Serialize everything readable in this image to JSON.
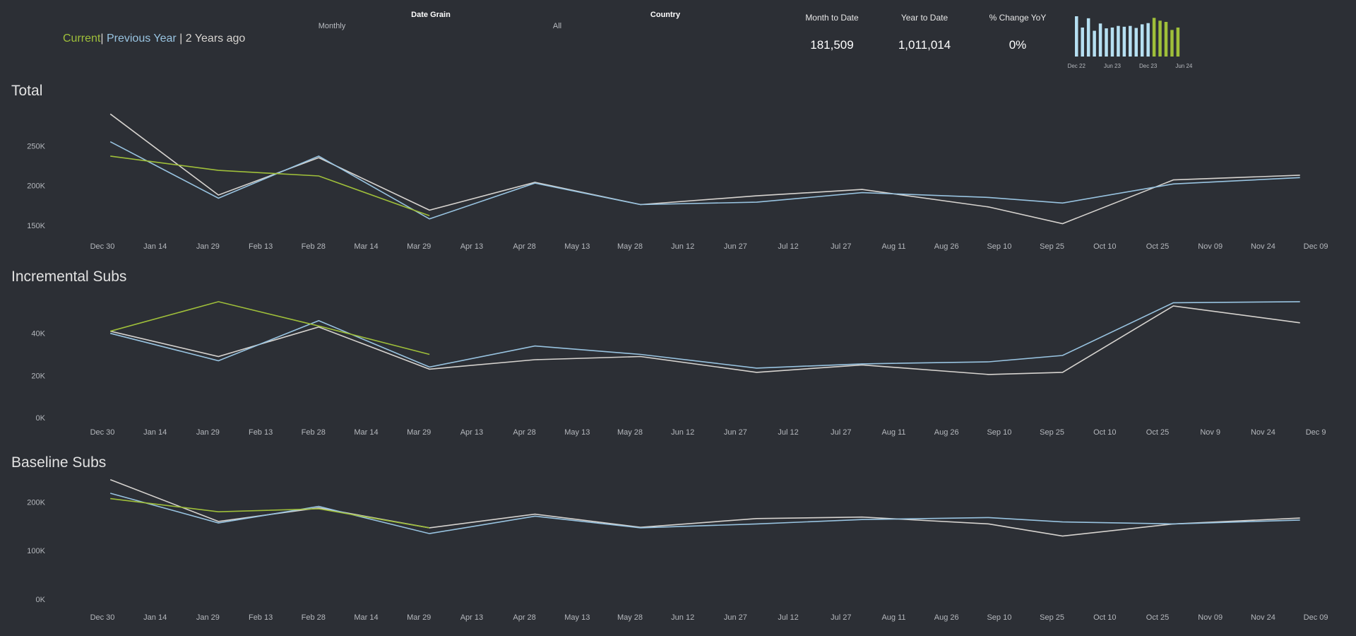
{
  "legend": {
    "current": "Current",
    "sep1": "|",
    "previous": "Previous Year",
    "sep2": "|",
    "two_years": "2 Years ago"
  },
  "filters": {
    "date_grain": {
      "label": "Date Grain",
      "value": "Monthly"
    },
    "country": {
      "label": "Country",
      "value": "All"
    }
  },
  "kpis": [
    {
      "label": "Month to Date",
      "value": "181,509"
    },
    {
      "label": "Year to Date",
      "value": "1,011,014"
    },
    {
      "label": "% Change YoY",
      "value": "0%"
    }
  ],
  "colors": {
    "background": "#2c2f35",
    "current": "#9fbf3a",
    "previous_year": "#98c3e0",
    "two_years_ago": "#d6d3cf",
    "spark_previous": "#b6e0f2"
  },
  "chart_data": [
    {
      "type": "bar",
      "name": "sparkline",
      "categories": [
        "Dec 22",
        "Jan 23",
        "Feb 23",
        "Mar 23",
        "Apr 23",
        "May 23",
        "Jun 23",
        "Jul 23",
        "Aug 23",
        "Sep 23",
        "Oct 23",
        "Nov 23",
        "Dec 23",
        "Jan 24",
        "Feb 24",
        "Mar 24",
        "Apr 24",
        "May 24",
        "Jun 24"
      ],
      "values": [
        100,
        72,
        95,
        64,
        82,
        70,
        72,
        76,
        74,
        76,
        71,
        80,
        83,
        96,
        89,
        86,
        66,
        72,
        0
      ],
      "highlight_from_index": 13,
      "tick_labels": [
        "Dec 22",
        "Jun 23",
        "Dec 23",
        "Jun 24"
      ],
      "tick_positions": [
        0,
        6,
        12,
        18
      ]
    },
    {
      "type": "line",
      "title": "Total",
      "x_labels": [
        "Dec 30",
        "Jan 14",
        "Jan 29",
        "Feb 13",
        "Feb 28",
        "Mar 14",
        "Mar 29",
        "Apr 13",
        "Apr 28",
        "May 13",
        "May 28",
        "Jun 12",
        "Jun 27",
        "Jul 12",
        "Jul 27",
        "Aug 11",
        "Aug 26",
        "Sep 10",
        "Sep 25",
        "Oct 10",
        "Oct 25",
        "Nov 09",
        "Nov 24",
        "Dec 09"
      ],
      "y_ticks": [
        {
          "label": "250K",
          "value": 250000
        },
        {
          "label": "200K",
          "value": 200000
        },
        {
          "label": "150K",
          "value": 150000
        }
      ],
      "ylim": [
        140000,
        300000
      ],
      "series": [
        {
          "name": "2 Years ago",
          "color": "#d6d3cf",
          "points": [
            [
              0.15,
              290000
            ],
            [
              2.2,
              188000
            ],
            [
              4.1,
              235000
            ],
            [
              6.2,
              169000
            ],
            [
              8.2,
              204000
            ],
            [
              10.2,
              176000
            ],
            [
              12.4,
              187000
            ],
            [
              14.4,
              195000
            ],
            [
              16.8,
              173000
            ],
            [
              18.2,
              152000
            ],
            [
              20.3,
              207000
            ],
            [
              22.7,
              213000
            ]
          ]
        },
        {
          "name": "Previous Year",
          "color": "#98c3e0",
          "points": [
            [
              0.15,
              255000
            ],
            [
              2.2,
              184000
            ],
            [
              4.1,
              237000
            ],
            [
              6.2,
              158000
            ],
            [
              8.2,
              203000
            ],
            [
              10.2,
              176000
            ],
            [
              12.4,
              179000
            ],
            [
              14.4,
              191000
            ],
            [
              16.8,
              185000
            ],
            [
              18.2,
              178000
            ],
            [
              20.3,
              202000
            ],
            [
              22.7,
              210000
            ]
          ]
        },
        {
          "name": "Current",
          "color": "#9fbf3a",
          "points": [
            [
              0.15,
              237000
            ],
            [
              2.2,
              219000
            ],
            [
              4.1,
              212000
            ],
            [
              6.2,
              162000
            ]
          ]
        }
      ]
    },
    {
      "type": "line",
      "title": "Incremental Subs",
      "x_labels": [
        "Dec 30",
        "Jan 14",
        "Jan 29",
        "Feb 13",
        "Feb 28",
        "Mar 14",
        "Mar 29",
        "Apr 13",
        "Apr 28",
        "May 13",
        "May 28",
        "Jun 12",
        "Jun 27",
        "Jul 12",
        "Jul 27",
        "Aug 11",
        "Aug 26",
        "Sep 10",
        "Sep 25",
        "Oct 10",
        "Oct 25",
        "Nov 9",
        "Nov 24",
        "Dec 9"
      ],
      "y_ticks": [
        {
          "label": "40K",
          "value": 40000
        },
        {
          "label": "20K",
          "value": 20000
        },
        {
          "label": "0K",
          "value": 0
        }
      ],
      "ylim": [
        0,
        58000
      ],
      "series": [
        {
          "name": "2 Years ago",
          "color": "#d6d3cf",
          "points": [
            [
              0.15,
              41000
            ],
            [
              2.2,
              29000
            ],
            [
              4.1,
              43000
            ],
            [
              6.2,
              23000
            ],
            [
              8.2,
              27500
            ],
            [
              10.2,
              29000
            ],
            [
              12.4,
              21500
            ],
            [
              14.4,
              25000
            ],
            [
              16.8,
              20500
            ],
            [
              18.2,
              21500
            ],
            [
              20.3,
              53000
            ],
            [
              22.7,
              45000
            ]
          ]
        },
        {
          "name": "Previous Year",
          "color": "#98c3e0",
          "points": [
            [
              0.15,
              40000
            ],
            [
              2.2,
              27000
            ],
            [
              4.1,
              46000
            ],
            [
              6.2,
              24000
            ],
            [
              8.2,
              34000
            ],
            [
              10.2,
              30000
            ],
            [
              12.4,
              23500
            ],
            [
              14.4,
              25500
            ],
            [
              16.8,
              26500
            ],
            [
              18.2,
              29500
            ],
            [
              20.3,
              54500
            ],
            [
              22.7,
              55000
            ]
          ]
        },
        {
          "name": "Current",
          "color": "#9fbf3a",
          "points": [
            [
              0.15,
              41000
            ],
            [
              2.2,
              55000
            ],
            [
              4.1,
              43500
            ],
            [
              6.2,
              30000
            ]
          ]
        }
      ]
    },
    {
      "type": "line",
      "title": "Baseline Subs",
      "x_labels": [
        "Dec 30",
        "Jan 14",
        "Jan 29",
        "Feb 13",
        "Feb 28",
        "Mar 14",
        "Mar 29",
        "Apr 13",
        "Apr 28",
        "May 13",
        "May 28",
        "Jun 12",
        "Jun 27",
        "Jul 12",
        "Jul 27",
        "Aug 11",
        "Aug 26",
        "Sep 10",
        "Sep 25",
        "Oct 10",
        "Oct 25",
        "Nov 09",
        "Nov 24",
        "Dec 09"
      ],
      "y_ticks": [
        {
          "label": "200K",
          "value": 200000
        },
        {
          "label": "100K",
          "value": 100000
        },
        {
          "label": "0K",
          "value": 0
        }
      ],
      "ylim": [
        0,
        250000
      ],
      "series": [
        {
          "name": "2 Years ago",
          "color": "#d6d3cf",
          "points": [
            [
              0.15,
              246000
            ],
            [
              2.2,
              160000
            ],
            [
              4.1,
              188000
            ],
            [
              6.2,
              147000
            ],
            [
              8.2,
              175000
            ],
            [
              10.2,
              148000
            ],
            [
              12.4,
              166000
            ],
            [
              14.4,
              169000
            ],
            [
              16.8,
              155000
            ],
            [
              18.2,
              130000
            ],
            [
              20.3,
              155000
            ],
            [
              22.7,
              167000
            ]
          ]
        },
        {
          "name": "Previous Year",
          "color": "#98c3e0",
          "points": [
            [
              0.15,
              218000
            ],
            [
              2.2,
              157000
            ],
            [
              4.1,
              191000
            ],
            [
              6.2,
              135000
            ],
            [
              8.2,
              171000
            ],
            [
              10.2,
              147000
            ],
            [
              12.4,
              155000
            ],
            [
              14.4,
              164000
            ],
            [
              16.8,
              168000
            ],
            [
              18.2,
              159000
            ],
            [
              20.3,
              155000
            ],
            [
              22.7,
              163000
            ]
          ]
        },
        {
          "name": "Current",
          "color": "#9fbf3a",
          "points": [
            [
              0.15,
              207000
            ],
            [
              2.2,
              180000
            ],
            [
              4.1,
              186000
            ],
            [
              6.2,
              147000
            ]
          ]
        }
      ]
    }
  ]
}
